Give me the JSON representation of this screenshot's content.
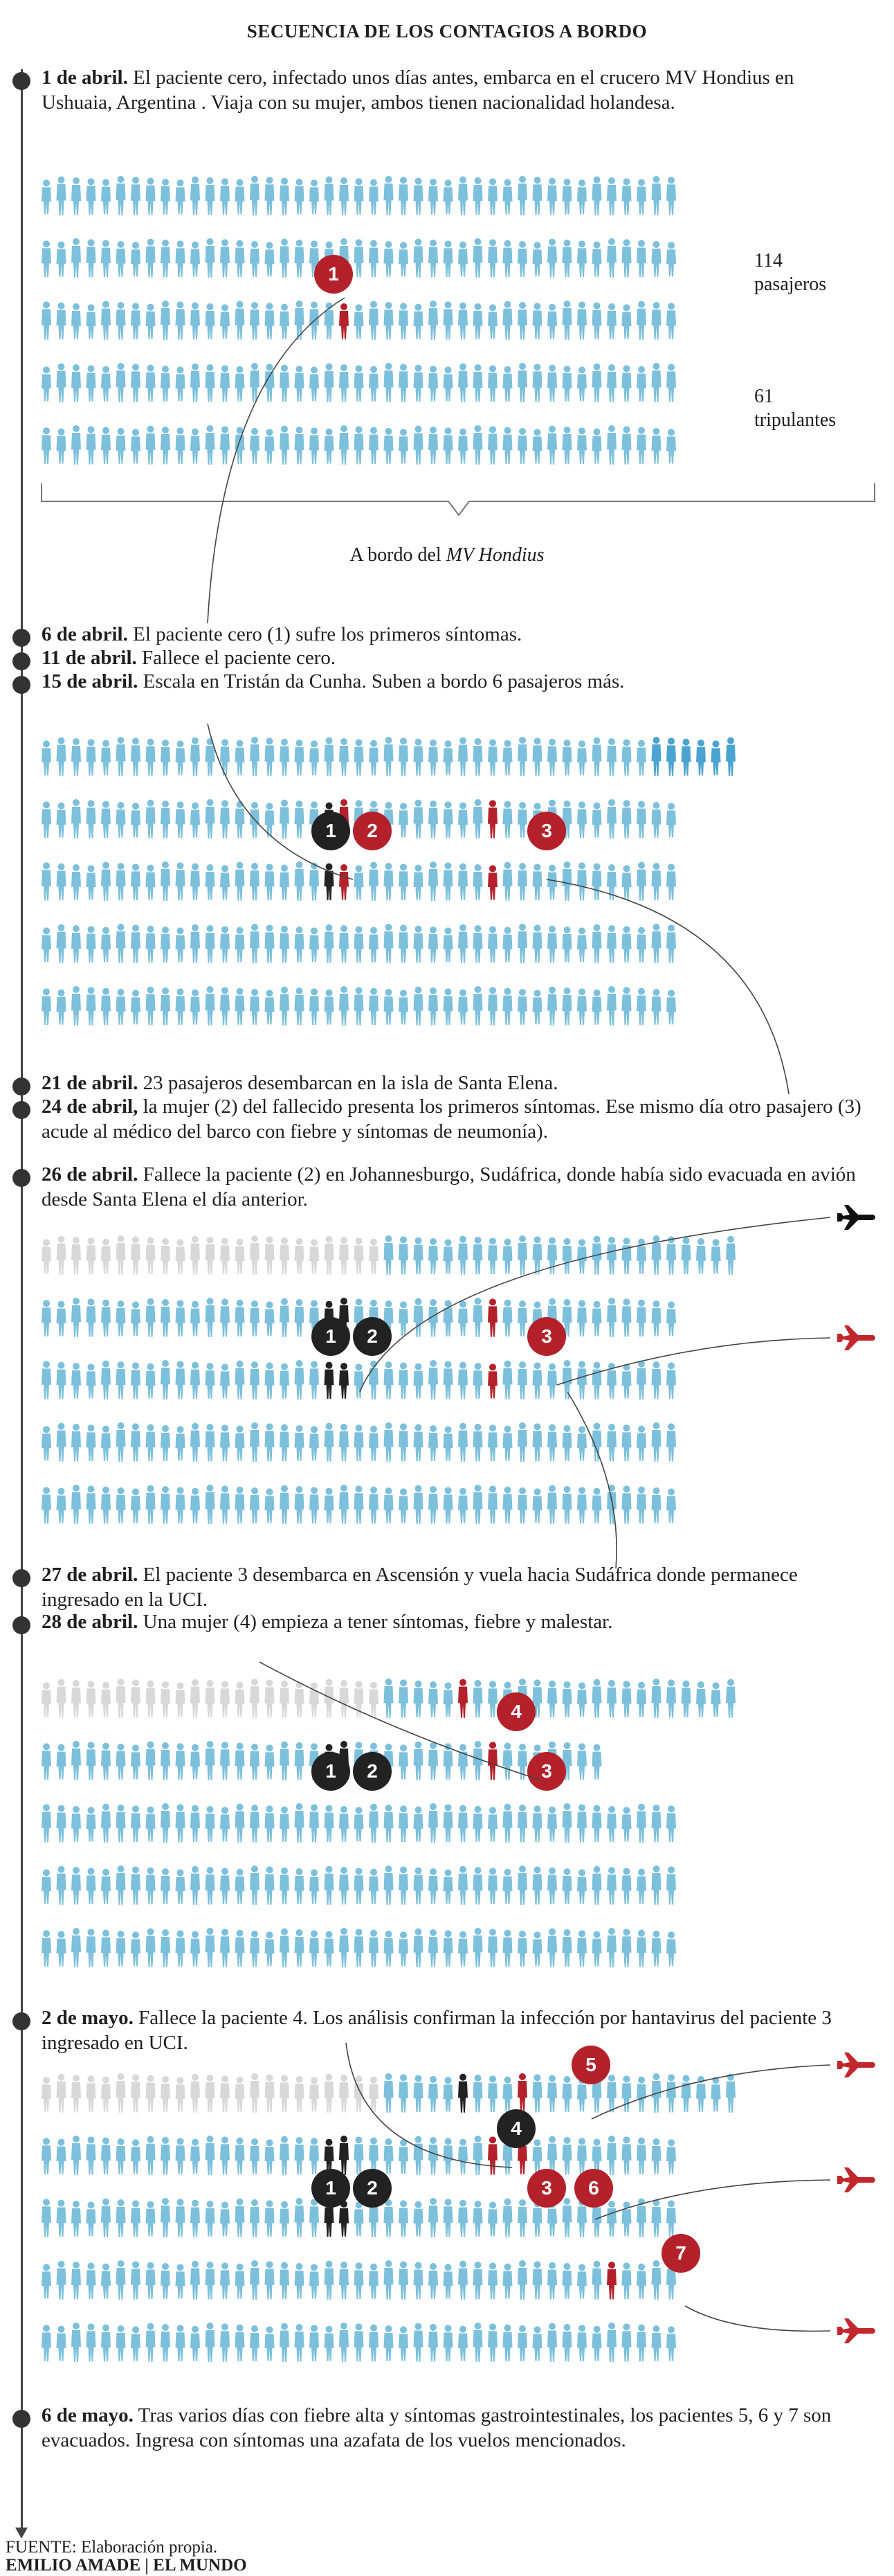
{
  "title": "SECUENCIA DE LOS CONTAGIOS A BORDO",
  "colors": {
    "passenger": "#7cc0dc",
    "new_passenger": "#4aa3d0",
    "disembarked": "#d8d8d8",
    "infected": "#b4212b",
    "deceased": "#222222"
  },
  "events": [
    {
      "date": "1 de abril.",
      "text": " El paciente cero, infectado unos días antes, embarca en el crucero MV Hondius en Ushuaia, Argentina . Viaja con su mujer, ambos tienen nacionalidad holandesa."
    },
    {
      "date": "6 de abril.",
      "text": " El paciente cero (1) sufre los primeros síntomas."
    },
    {
      "date": "11 de abril.",
      "text": " Fallece el paciente cero."
    },
    {
      "date": "15 de abril.",
      "text": " Escala en Tristán da Cunha. Suben a bordo 6 pasajeros más."
    },
    {
      "date": "21 de abril.",
      "text": " 23 pasajeros desembarcan en la isla de Santa Elena."
    },
    {
      "date": "24 de abril,",
      "text": " la mujer (2) del fallecido presenta los primeros síntomas. Ese mismo día otro pasajero (3) acude al médico del barco con fiebre y síntomas de neumonía)."
    },
    {
      "date": "26 de abril.",
      "text": " Fallece la paciente (2) en Johannesburgo, Sudáfrica, donde había sido evacuada en avión desde Santa Elena el día anterior."
    },
    {
      "date": "27 de abril.",
      "text": " El paciente 3 desembarca en Ascensión y vuela hacia Sudáfrica donde permanece ingresado en la UCI."
    },
    {
      "date": "28 de abril.",
      "text": " Una mujer (4) empieza a tener síntomas, fiebre y malestar."
    },
    {
      "date": "2 de mayo.",
      "text": " Fallece la paciente 4. Los análisis confirman la infección por hantavirus del paciente 3 ingresado en UCI."
    },
    {
      "date": "6 de mayo.",
      "text": " Tras varios días con fiebre alta y síntomas gastrointestinales, los pacientes 5, 6 y 7 son evacuados. Ingresa con síntomas una azafata de los vuelos mencionados."
    }
  ],
  "labels": {
    "passengers_count": "114",
    "passengers_word": "pasajeros",
    "crew_count": "61",
    "crew_word": "tripulantes",
    "caption_prefix": "A bordo del ",
    "caption_ship": "MV Hondius"
  },
  "pins": {
    "p1": "1",
    "p2": "2",
    "p3": "3",
    "p4": "4",
    "p5": "5",
    "p6": "6",
    "p7": "7"
  },
  "footer": {
    "source": "FUENTE: Elaboración propia.",
    "credit": "EMILIO AMADE | EL MUNDO"
  }
}
